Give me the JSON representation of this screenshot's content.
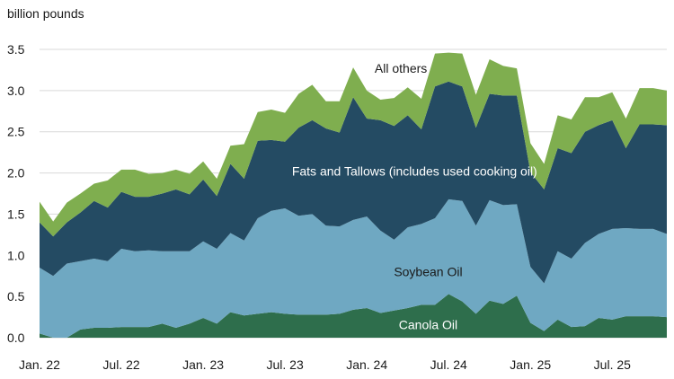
{
  "chart_data": {
    "type": "area",
    "stacked": true,
    "ylabel": "billion pounds",
    "ylim": [
      0,
      3.5
    ],
    "yticks": [
      "0.0",
      "0.5",
      "1.0",
      "1.5",
      "2.0",
      "2.5",
      "3.0",
      "3.5"
    ],
    "xtick_labels": [
      "Jan. 22",
      "Jul. 22",
      "Jan. 23",
      "Jul. 23",
      "Jan. 24",
      "Jul. 24",
      "Jan. 25",
      "Jul. 25"
    ],
    "xtick_months": [
      0,
      6,
      12,
      18,
      24,
      30,
      36,
      42
    ],
    "month_count": 47,
    "grid": true,
    "legend": "none",
    "colors": [
      "#2e6e4c",
      "#6fa8c2",
      "#244b63",
      "#7fae4f"
    ],
    "series_labels": [
      {
        "text": "Canola Oil",
        "month": 28.5,
        "y": 0.16,
        "color": "#ffffff"
      },
      {
        "text": "Soybean Oil",
        "month": 28.5,
        "y": 0.8,
        "color": "#1a1a1a"
      },
      {
        "text": "Fats and Tallows (includes used cooking oil)",
        "month": 27.5,
        "y": 2.02,
        "color": "#ffffff"
      },
      {
        "text": "All others",
        "month": 26.5,
        "y": 3.27,
        "color": "#1a1a1a"
      }
    ],
    "series": [
      {
        "name": "Canola Oil",
        "values": [
          0.05,
          0.0,
          0.0,
          0.1,
          0.12,
          0.12,
          0.13,
          0.13,
          0.13,
          0.17,
          0.12,
          0.17,
          0.24,
          0.17,
          0.31,
          0.27,
          0.29,
          0.31,
          0.29,
          0.28,
          0.28,
          0.28,
          0.29,
          0.34,
          0.36,
          0.3,
          0.33,
          0.36,
          0.4,
          0.4,
          0.53,
          0.44,
          0.29,
          0.45,
          0.41,
          0.51,
          0.18,
          0.08,
          0.22,
          0.13,
          0.14,
          0.24,
          0.22,
          0.26,
          0.26,
          0.26,
          0.25
        ]
      },
      {
        "name": "Soybean Oil",
        "values": [
          0.8,
          0.75,
          0.9,
          0.83,
          0.84,
          0.81,
          0.95,
          0.92,
          0.93,
          0.88,
          0.93,
          0.88,
          0.93,
          0.91,
          0.96,
          0.91,
          1.16,
          1.23,
          1.28,
          1.2,
          1.22,
          1.08,
          1.06,
          1.09,
          1.11,
          1.0,
          0.86,
          0.98,
          0.98,
          1.05,
          1.15,
          1.22,
          1.07,
          1.22,
          1.2,
          1.11,
          0.68,
          0.58,
          0.83,
          0.83,
          1.01,
          1.02,
          1.1,
          1.07,
          1.06,
          1.06,
          1.01
        ]
      },
      {
        "name": "Fats and Tallows (includes used cooking oil)",
        "values": [
          0.55,
          0.48,
          0.5,
          0.59,
          0.7,
          0.65,
          0.69,
          0.66,
          0.65,
          0.7,
          0.75,
          0.69,
          0.75,
          0.64,
          0.84,
          0.75,
          0.94,
          0.86,
          0.81,
          1.07,
          1.14,
          1.18,
          1.14,
          1.49,
          1.19,
          1.34,
          1.38,
          1.36,
          1.15,
          1.6,
          1.43,
          1.39,
          1.19,
          1.29,
          1.33,
          1.32,
          1.15,
          1.14,
          1.25,
          1.28,
          1.35,
          1.32,
          1.32,
          0.97,
          1.27,
          1.27,
          1.32
        ]
      },
      {
        "name": "All others",
        "values": [
          0.25,
          0.18,
          0.24,
          0.23,
          0.21,
          0.33,
          0.27,
          0.33,
          0.28,
          0.25,
          0.24,
          0.25,
          0.22,
          0.21,
          0.22,
          0.42,
          0.35,
          0.37,
          0.35,
          0.41,
          0.43,
          0.33,
          0.38,
          0.36,
          0.34,
          0.25,
          0.34,
          0.34,
          0.37,
          0.4,
          0.35,
          0.4,
          0.4,
          0.42,
          0.36,
          0.33,
          0.35,
          0.31,
          0.4,
          0.41,
          0.42,
          0.34,
          0.34,
          0.36,
          0.44,
          0.44,
          0.42
        ]
      }
    ]
  }
}
